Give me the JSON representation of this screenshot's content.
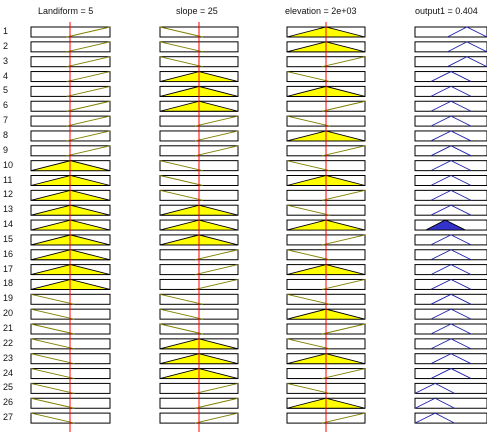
{
  "columns": [
    {
      "title": "Landiform = 5"
    },
    {
      "title": "slope = 25"
    },
    {
      "title": "elevation = 2e+03"
    },
    {
      "title": "output1 = 0.404"
    }
  ],
  "row_labels": [
    "1",
    "2",
    "3",
    "4",
    "5",
    "6",
    "7",
    "8",
    "9",
    "10",
    "11",
    "12",
    "13",
    "14",
    "15",
    "16",
    "17",
    "18",
    "19",
    "20",
    "21",
    "22",
    "23",
    "24",
    "25",
    "26",
    "27"
  ],
  "colors": {
    "fill_input": "#ffff00",
    "fill_output": "#3333cc",
    "line_input": "#808000",
    "line_output": "#2222aa",
    "marker": "#ff0000",
    "row_border": "#000000"
  },
  "rule_shapes": [
    [
      "up",
      "down",
      "tri",
      "hi"
    ],
    [
      "up",
      "down",
      "tri",
      "hi"
    ],
    [
      "up",
      "down",
      "up",
      "hi"
    ],
    [
      "up",
      "tri",
      "down",
      "mid"
    ],
    [
      "up",
      "tri",
      "tri",
      "mid"
    ],
    [
      "up",
      "tri",
      "up",
      "mid"
    ],
    [
      "up",
      "up",
      "down",
      "mid"
    ],
    [
      "up",
      "up",
      "tri",
      "mid"
    ],
    [
      "up",
      "up",
      "up",
      "mid"
    ],
    [
      "tri",
      "down",
      "down",
      "mid"
    ],
    [
      "tri",
      "down",
      "tri",
      "mid"
    ],
    [
      "tri",
      "down",
      "up",
      "mid"
    ],
    [
      "tri",
      "tri",
      "down",
      "mid"
    ],
    [
      "tri",
      "tri",
      "tri",
      "lowfill"
    ],
    [
      "tri",
      "tri",
      "up",
      "mid"
    ],
    [
      "tri",
      "up",
      "down",
      "mid"
    ],
    [
      "tri",
      "up",
      "tri",
      "mid"
    ],
    [
      "tri",
      "up",
      "up",
      "mid"
    ],
    [
      "down",
      "down",
      "down",
      "mid"
    ],
    [
      "down",
      "down",
      "tri",
      "mid"
    ],
    [
      "down",
      "down",
      "up",
      "mid"
    ],
    [
      "down",
      "tri",
      "down",
      "mid"
    ],
    [
      "down",
      "tri",
      "tri",
      "mid"
    ],
    [
      "down",
      "tri",
      "up",
      "mid"
    ],
    [
      "down",
      "up",
      "down",
      "low"
    ],
    [
      "down",
      "up",
      "tri",
      "low"
    ],
    [
      "down",
      "up",
      "up",
      "low"
    ]
  ]
}
